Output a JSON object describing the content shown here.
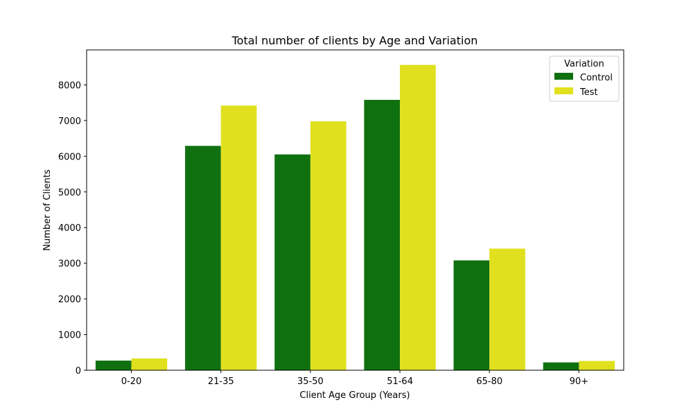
{
  "chart_data": {
    "type": "bar",
    "title": "Total number of clients by Age and Variation",
    "xlabel": "Client Age Group (Years)",
    "ylabel": "Number of Clients",
    "categories": [
      "0-20",
      "21-35",
      "35-50",
      "51-64",
      "65-80",
      "90+"
    ],
    "series": [
      {
        "name": "Control",
        "color": "#0f7010",
        "values": [
          270,
          6290,
          6050,
          7580,
          3080,
          220
        ]
      },
      {
        "name": "Test",
        "color": "#e0e01e",
        "values": [
          330,
          7420,
          6980,
          8560,
          3410,
          260
        ]
      }
    ],
    "ylim": [
      0,
      8980
    ],
    "yticks": [
      0,
      1000,
      2000,
      3000,
      4000,
      5000,
      6000,
      7000,
      8000
    ],
    "grid": false,
    "legend": {
      "title": "Variation",
      "position": "top-right"
    }
  }
}
